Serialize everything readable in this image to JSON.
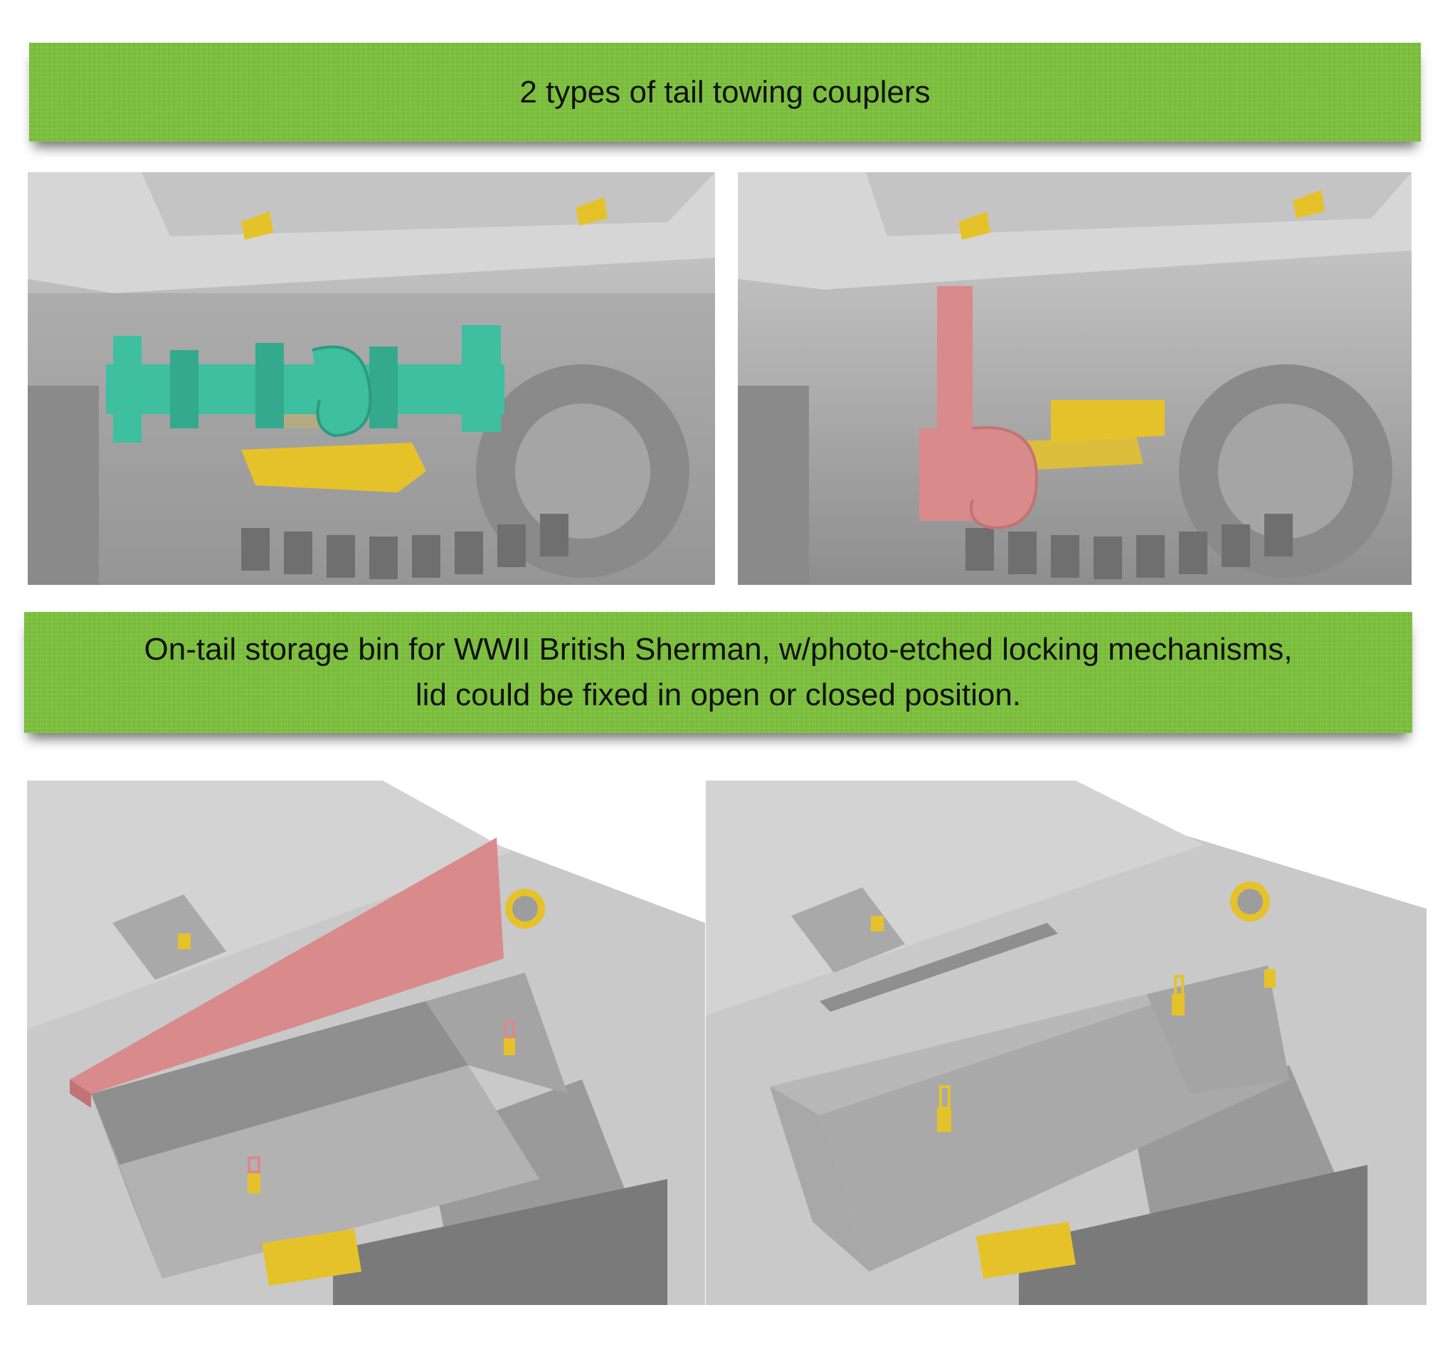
{
  "banners": {
    "top": {
      "text": "2 types of tail towing couplers"
    },
    "middle": {
      "line1": "On-tail storage bin for WWII British Sherman,  w/photo-etched locking mechanisms,",
      "line2": "lid could be fixed in open or closed position."
    }
  },
  "colors": {
    "banner_green": "#7cbf3d",
    "highlight_teal": "#3dbfa0",
    "highlight_pink": "#d98a8a",
    "highlight_yellow": "#e6c22a",
    "model_grey": "#b9b9b9"
  }
}
